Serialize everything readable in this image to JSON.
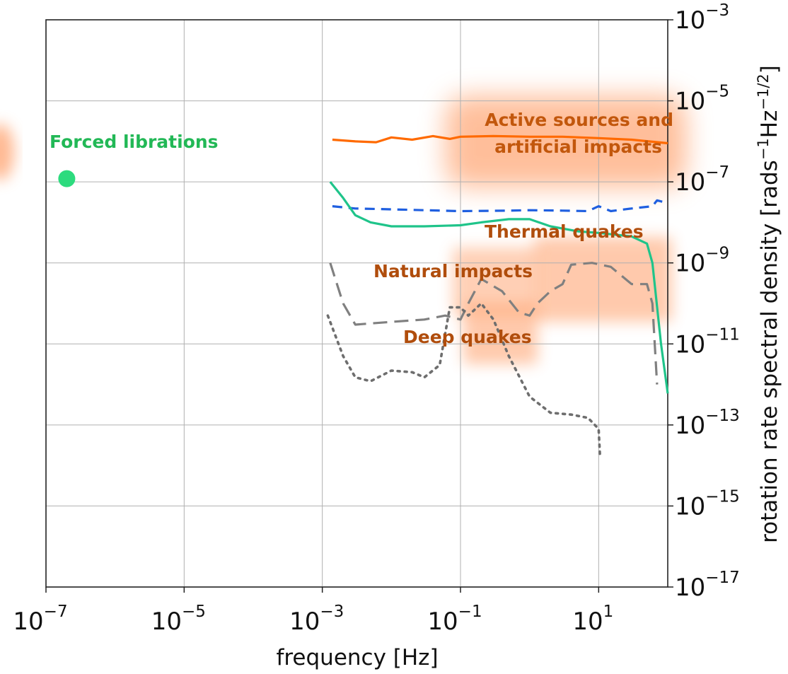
{
  "chart_data": {
    "type": "line",
    "title": "",
    "xlabel": "frequency [Hz]",
    "ylabel_text": "rotation rate spectral density [rads",
    "ylabel_sup1": "−1",
    "ylabel_mid": "Hz",
    "ylabel_sup2": "−1/2",
    "ylabel_end": "]",
    "x_scale": "log",
    "y_scale": "log",
    "xlim": [
      1e-07,
      100
    ],
    "ylim": [
      1e-17,
      0.001
    ],
    "grid": true,
    "x_ticks": [
      {
        "value": 1e-07,
        "base": "10",
        "exp": "−7"
      },
      {
        "value": 1e-05,
        "base": "10",
        "exp": "−5"
      },
      {
        "value": 0.001,
        "base": "10",
        "exp": "−3"
      },
      {
        "value": 0.1,
        "base": "10",
        "exp": "−1"
      },
      {
        "value": 10,
        "base": "10",
        "exp": "1"
      }
    ],
    "y_ticks": [
      {
        "value": 0.001,
        "base": "10",
        "exp": "−3"
      },
      {
        "value": 1e-05,
        "base": "10",
        "exp": "−5"
      },
      {
        "value": 1e-07,
        "base": "10",
        "exp": "−7"
      },
      {
        "value": 1e-09,
        "base": "10",
        "exp": "−9"
      },
      {
        "value": 1e-11,
        "base": "10",
        "exp": "−11"
      },
      {
        "value": 1e-13,
        "base": "10",
        "exp": "−13"
      },
      {
        "value": 1e-15,
        "base": "10",
        "exp": "−15"
      },
      {
        "value": 1e-17,
        "base": "10",
        "exp": "−17"
      }
    ],
    "series": [
      {
        "style": "solid",
        "color": "#ff6a00",
        "points": [
          [
            0.0014,
            1.1e-06
          ],
          [
            0.003,
            1e-06
          ],
          [
            0.006,
            9.5e-07
          ],
          [
            0.01,
            1.25e-06
          ],
          [
            0.02,
            1.1e-06
          ],
          [
            0.04,
            1.35e-06
          ],
          [
            0.07,
            1.15e-06
          ],
          [
            0.1,
            1.3e-06
          ],
          [
            0.3,
            1.35e-06
          ],
          [
            1,
            1.3e-06
          ],
          [
            3,
            1.3e-06
          ],
          [
            10,
            1.2e-06
          ],
          [
            30,
            1.1e-06
          ],
          [
            100,
            9e-07
          ]
        ]
      },
      {
        "style": "dashed",
        "color": "#1f5fe0",
        "points": [
          [
            0.0014,
            2.5e-08
          ],
          [
            0.003,
            2.2e-08
          ],
          [
            0.01,
            2.1e-08
          ],
          [
            0.03,
            2e-08
          ],
          [
            0.1,
            1.9e-08
          ],
          [
            0.5,
            1.95e-08
          ],
          [
            1,
            2e-08
          ],
          [
            3,
            1.95e-08
          ],
          [
            7,
            1.9e-08
          ],
          [
            10,
            2.5e-08
          ],
          [
            15,
            1.9e-08
          ],
          [
            30,
            2.2e-08
          ],
          [
            60,
            2.5e-08
          ],
          [
            70,
            3.5e-08
          ],
          [
            100,
            3e-08
          ]
        ]
      },
      {
        "style": "solid",
        "color": "#1fc48a",
        "points": [
          [
            0.0013,
            1e-07
          ],
          [
            0.002,
            4e-08
          ],
          [
            0.003,
            1.5e-08
          ],
          [
            0.005,
            1e-08
          ],
          [
            0.01,
            8e-09
          ],
          [
            0.03,
            8e-09
          ],
          [
            0.1,
            8.5e-09
          ],
          [
            0.2,
            1e-08
          ],
          [
            0.5,
            1.2e-08
          ],
          [
            1,
            1.2e-08
          ],
          [
            2,
            8e-09
          ],
          [
            5,
            6e-09
          ],
          [
            10,
            5.5e-09
          ],
          [
            30,
            4.5e-09
          ],
          [
            50,
            3e-09
          ],
          [
            60,
            1e-09
          ],
          [
            80,
            1e-11
          ],
          [
            100,
            6e-13
          ]
        ]
      },
      {
        "style": "longdash",
        "color": "#808080",
        "points": [
          [
            0.0013,
            1e-09
          ],
          [
            0.002,
            1e-10
          ],
          [
            0.003,
            3e-11
          ],
          [
            0.01,
            3.5e-11
          ],
          [
            0.03,
            4e-11
          ],
          [
            0.06,
            5e-11
          ],
          [
            0.1,
            4e-11
          ],
          [
            0.13,
            1e-10
          ],
          [
            0.2,
            4e-10
          ],
          [
            0.4,
            2e-10
          ],
          [
            0.7,
            6e-11
          ],
          [
            1,
            5e-11
          ],
          [
            1.3,
            1e-10
          ],
          [
            2,
            2e-10
          ],
          [
            3,
            3e-10
          ],
          [
            4,
            9e-10
          ],
          [
            8,
            1e-09
          ],
          [
            15,
            8e-10
          ],
          [
            30,
            3e-10
          ],
          [
            50,
            3e-10
          ],
          [
            60,
            1e-10
          ],
          [
            70,
            1e-12
          ]
        ]
      },
      {
        "style": "dotted",
        "color": "#6e6e6e",
        "points": [
          [
            0.0012,
            5e-11
          ],
          [
            0.002,
            5e-12
          ],
          [
            0.003,
            1.5e-12
          ],
          [
            0.005,
            1.2e-12
          ],
          [
            0.01,
            2.2e-12
          ],
          [
            0.02,
            2e-12
          ],
          [
            0.03,
            1.5e-12
          ],
          [
            0.05,
            3e-12
          ],
          [
            0.07,
            8e-11
          ],
          [
            0.1,
            8e-11
          ],
          [
            0.13,
            5e-11
          ],
          [
            0.2,
            1e-10
          ],
          [
            0.3,
            4e-11
          ],
          [
            0.5,
            5e-12
          ],
          [
            1,
            5e-13
          ],
          [
            2,
            2e-13
          ],
          [
            4,
            1.8e-13
          ],
          [
            7,
            1.5e-13
          ],
          [
            10,
            8e-14
          ],
          [
            10.5,
            1.5e-14
          ]
        ]
      },
      {
        "style": "marker",
        "color": "#2ddb7e",
        "points": [
          [
            2e-07,
            1.2e-07
          ]
        ]
      }
    ],
    "annotations": [
      {
        "text": "Forced librations",
        "color": "#22b856"
      },
      {
        "text": "Active sources and",
        "color": "#c2570c"
      },
      {
        "text": "artificial impacts",
        "color": "#c2570c"
      },
      {
        "text": "Thermal quakes",
        "color": "#b04d0c"
      },
      {
        "text": "Natural impacts",
        "color": "#b04d0c"
      },
      {
        "text": "Deep quakes",
        "color": "#b04d0c"
      }
    ],
    "shaded_regions_color": "#ff8a4a"
  }
}
